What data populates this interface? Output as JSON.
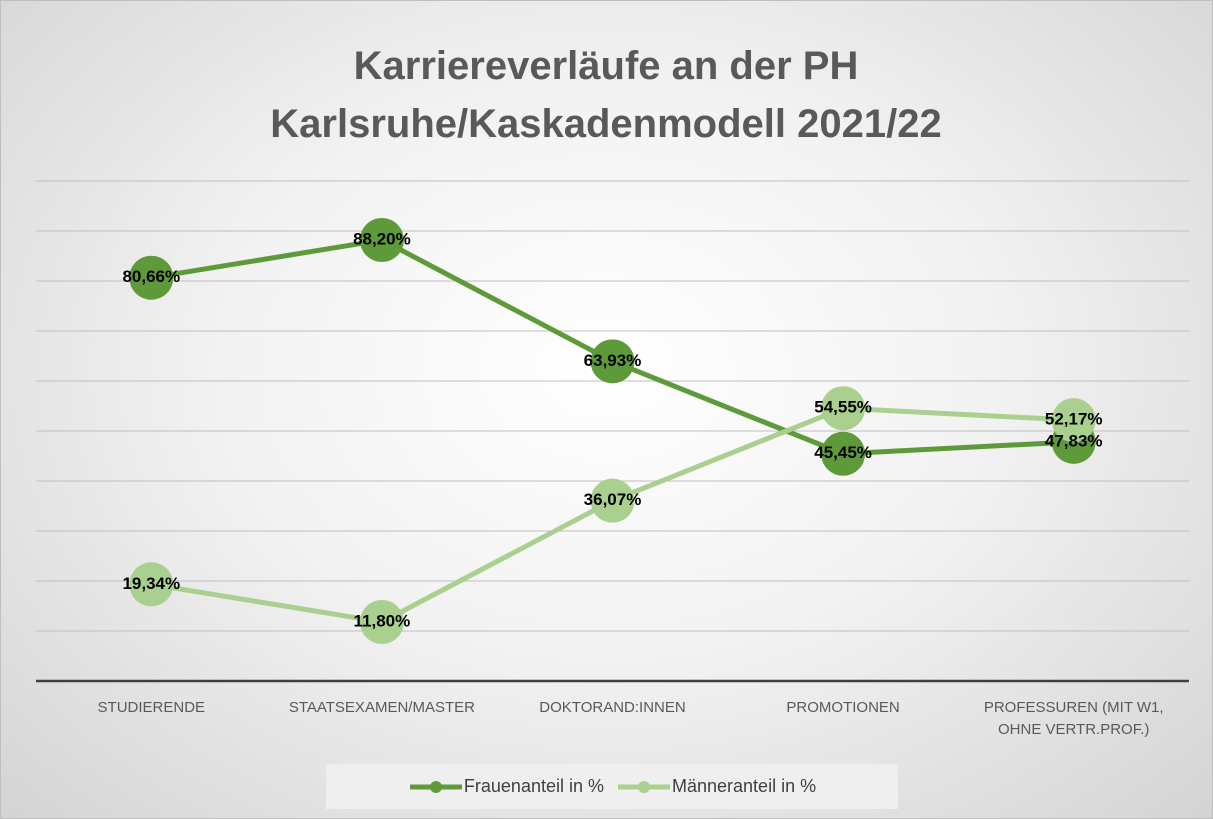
{
  "chart_data": {
    "type": "line",
    "title": "Karriereverläufe an der PH Karlsruhe/Kaskadenmodell 2021/22",
    "categories": [
      "STUDIERENDE",
      "STAATSEXAMEN/MASTER",
      "DOKTORAND:INNEN",
      "PROMOTIONEN",
      "PROFESSUREN (MIT W1, OHNE VERTR.PROF.)"
    ],
    "series": [
      {
        "name": "Frauenanteil in %",
        "color": "#5e9a3a",
        "values": [
          80.66,
          88.2,
          63.93,
          45.45,
          47.83
        ],
        "value_labels": [
          "80,66%",
          "88,20%",
          "63,93%",
          "45,45%",
          "47,83%"
        ]
      },
      {
        "name": "Männeranteil in %",
        "color": "#a9d08e",
        "values": [
          19.34,
          11.8,
          36.07,
          54.55,
          52.17
        ],
        "value_labels": [
          "19,34%",
          "11,80%",
          "36,07%",
          "54,55%",
          "52,17%"
        ]
      }
    ],
    "ylim": [
      0,
      100
    ],
    "yticks": [
      0,
      10,
      20,
      30,
      40,
      50,
      60,
      70,
      80,
      90,
      100
    ],
    "grid": true,
    "legend": "bottom"
  }
}
